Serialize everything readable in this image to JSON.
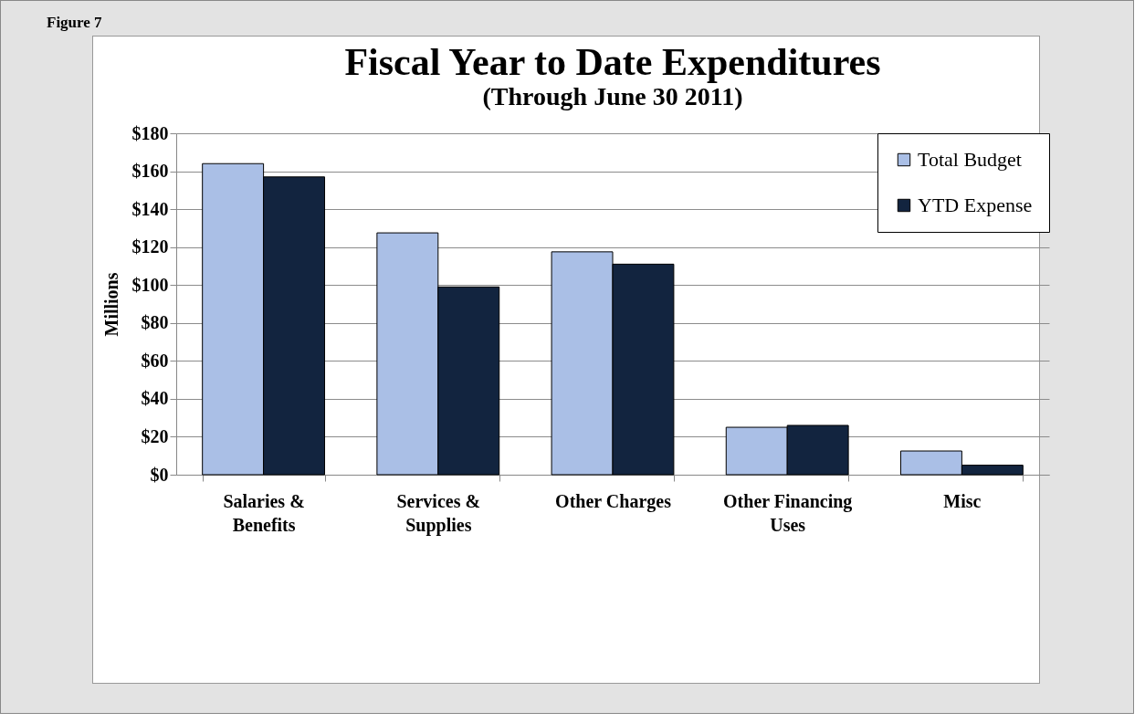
{
  "chart_data": {
    "type": "bar",
    "title": "Fiscal Year to Date Expenditures",
    "subtitle": "(Through June 30 2011)",
    "ylabel": "Millions",
    "annotations": [
      "Figure 7"
    ],
    "categories": [
      "Salaries & Benefits",
      "Services & Supplies",
      "Other Charges",
      "Other Financing Uses",
      "Misc"
    ],
    "series": [
      {
        "name": "Total Budget",
        "color": "#aabfe6",
        "values": [
          164,
          127.5,
          117.5,
          25,
          12.5
        ]
      },
      {
        "name": "YTD Expense",
        "color": "#12243f",
        "values": [
          157,
          99,
          111,
          26,
          5
        ]
      }
    ],
    "ylim": [
      0,
      180
    ],
    "yticks": [
      {
        "value": 0,
        "label": "$0"
      },
      {
        "value": 20,
        "label": "$20"
      },
      {
        "value": 40,
        "label": "$40"
      },
      {
        "value": 60,
        "label": "$60"
      },
      {
        "value": 80,
        "label": "$80"
      },
      {
        "value": 100,
        "label": "$100"
      },
      {
        "value": 120,
        "label": "$120"
      },
      {
        "value": 140,
        "label": "$140"
      },
      {
        "value": 160,
        "label": "$160"
      },
      {
        "value": 180,
        "label": "$180"
      }
    ],
    "grid": "y",
    "legend": "top right"
  }
}
